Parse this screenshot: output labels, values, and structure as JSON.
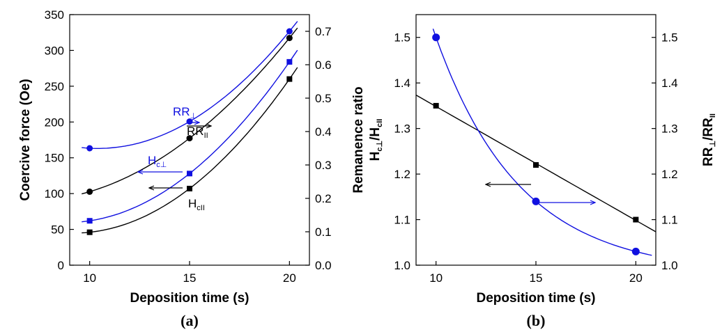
{
  "chart_data": [
    {
      "panel": "(a)",
      "type": "line",
      "caption": "(a)",
      "xlabel": "Deposition time (s)",
      "ylabel": "Coercive force (Oe)",
      "y2label": "Remanence ratio",
      "xlim": [
        9,
        21
      ],
      "ylim": [
        0,
        350
      ],
      "y2lim": [
        0,
        0.75
      ],
      "xticks": [
        "10",
        "15",
        "20"
      ],
      "yticks": [
        "0",
        "50",
        "100",
        "150",
        "200",
        "250",
        "300",
        "350"
      ],
      "y2ticks": [
        "0.0",
        "0.1",
        "0.2",
        "0.3",
        "0.4",
        "0.5",
        "0.6",
        "0.7"
      ],
      "grid": false,
      "series": [
        {
          "axis": "left",
          "color": "#000000",
          "marker": "square",
          "label_main": "H",
          "label_sub": "cII",
          "x": [
            10,
            15,
            20
          ],
          "y": [
            46,
            107,
            260
          ],
          "arrow": "left"
        },
        {
          "axis": "left",
          "color": "#1010e0",
          "marker": "square",
          "label_main": "H",
          "label_sub": "c⊥",
          "x": [
            10,
            15,
            20
          ],
          "y": [
            62,
            128,
            284
          ],
          "arrow": "left"
        },
        {
          "axis": "right",
          "color": "#000000",
          "marker": "circle",
          "label_main": "RR",
          "label_sub": "II",
          "x": [
            10,
            15,
            20
          ],
          "y": [
            0.22,
            0.38,
            0.68
          ],
          "arrow": "right"
        },
        {
          "axis": "right",
          "color": "#1010e0",
          "marker": "circle",
          "label_main": "RR",
          "label_sub": "⊥",
          "x": [
            10,
            15,
            20
          ],
          "y": [
            0.35,
            0.43,
            0.7
          ],
          "arrow": "right"
        }
      ]
    },
    {
      "panel": "(b)",
      "type": "line",
      "caption": "(b)",
      "xlabel": "Deposition time (s)",
      "ylabel_main": "H",
      "ylabel_sub1": "c⊥",
      "ylabel_mid": "/H",
      "ylabel_sub2": "cII",
      "y2label_main": "RR",
      "y2label_sub1": "⊥",
      "y2label_mid": "/RR",
      "y2label_sub2": "II",
      "xlim": [
        9,
        21
      ],
      "ylim": [
        1.0,
        1.55
      ],
      "y2lim": [
        1.0,
        1.55
      ],
      "xticks": [
        "10",
        "15",
        "20"
      ],
      "yticks": [
        "1.0",
        "1.1",
        "1.2",
        "1.3",
        "1.4",
        "1.5"
      ],
      "y2ticks": [
        "1.0",
        "1.1",
        "1.2",
        "1.3",
        "1.4",
        "1.5"
      ],
      "grid": false,
      "series": [
        {
          "axis": "left",
          "color": "#000000",
          "marker": "square",
          "x": [
            10,
            15,
            20
          ],
          "y": [
            1.35,
            1.22,
            1.1
          ],
          "arrow": "left"
        },
        {
          "axis": "right",
          "color": "#1010e0",
          "marker": "circle",
          "x": [
            10,
            15,
            20
          ],
          "y": [
            1.5,
            1.14,
            1.03
          ],
          "arrow": "right"
        }
      ]
    }
  ]
}
